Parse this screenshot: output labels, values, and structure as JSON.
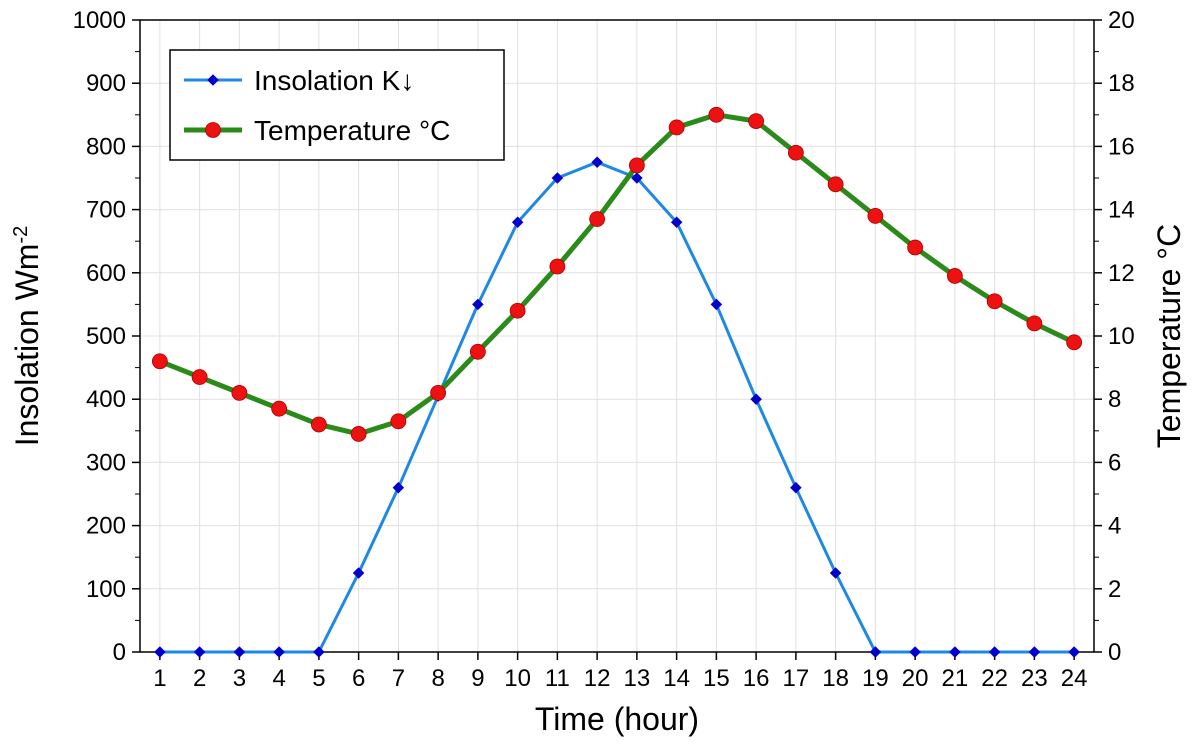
{
  "chart_data": {
    "type": "line",
    "xlabel": "Time (hour)",
    "ylabel_left": {
      "text": "Insolation Wm",
      "sup": "-2"
    },
    "ylabel_right": "Temperature °C",
    "x": [
      1,
      2,
      3,
      4,
      5,
      6,
      7,
      8,
      9,
      10,
      11,
      12,
      13,
      14,
      15,
      16,
      17,
      18,
      19,
      20,
      21,
      22,
      23,
      24
    ],
    "xlim": [
      0.5,
      24.5
    ],
    "ylim_left": [
      0,
      1000
    ],
    "ylim_right": [
      0,
      20
    ],
    "yticks_left": [
      0,
      100,
      200,
      300,
      400,
      500,
      600,
      700,
      800,
      900,
      1000
    ],
    "yticks_right": [
      0,
      2,
      4,
      6,
      8,
      10,
      12,
      14,
      16,
      18,
      20
    ],
    "grid": true,
    "legend_position": "top-left",
    "series": [
      {
        "name": "Insolation K↓",
        "axis": "left",
        "color": "#1e88e5",
        "marker_color": "#0000cc",
        "marker": "diamond",
        "values": [
          0,
          0,
          0,
          0,
          0,
          125,
          260,
          405,
          550,
          680,
          750,
          775,
          750,
          680,
          550,
          400,
          260,
          125,
          0,
          0,
          0,
          0,
          0,
          0
        ]
      },
      {
        "name": "Temperature °C",
        "axis": "right",
        "color": "#2a8a1a",
        "marker_color": "#ee1111",
        "marker": "circle",
        "values": [
          9.2,
          8.7,
          8.2,
          7.7,
          7.2,
          6.9,
          7.3,
          8.2,
          9.5,
          10.8,
          12.2,
          13.7,
          15.4,
          16.6,
          17.0,
          16.8,
          15.8,
          14.8,
          13.8,
          12.8,
          11.9,
          11.1,
          10.4,
          9.8
        ]
      }
    ]
  }
}
